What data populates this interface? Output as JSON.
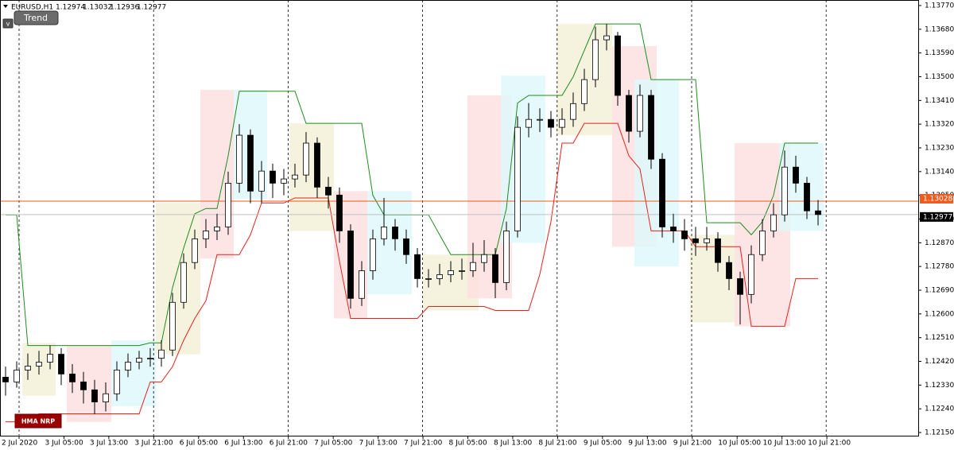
{
  "chart_data": {
    "type": "candlestick",
    "title": "EURUSD,H1",
    "last_bar": [
      1.12974,
      1.13032,
      1.12936,
      1.12977
    ],
    "ylim": [
      1.12138,
      1.13791
    ],
    "yticks": [
      {
        "value": 1.1377,
        "label": "1.13770"
      },
      {
        "value": 1.1368,
        "label": "1.13680"
      },
      {
        "value": 1.1359,
        "label": "1.13590"
      },
      {
        "value": 1.135,
        "label": "1.13500"
      },
      {
        "value": 1.1341,
        "label": "1.13410"
      },
      {
        "value": 1.1332,
        "label": "1.13320"
      },
      {
        "value": 1.1323,
        "label": "1.13230"
      },
      {
        "value": 1.1314,
        "label": "1.13140"
      },
      {
        "value": 1.1305,
        "label": "1.13050"
      },
      {
        "value": 1.1296,
        "label": "1.12960"
      },
      {
        "value": 1.1287,
        "label": "1.12870"
      },
      {
        "value": 1.1278,
        "label": "1.12780"
      },
      {
        "value": 1.1269,
        "label": "1.12690"
      },
      {
        "value": 1.126,
        "label": "1.12600"
      },
      {
        "value": 1.1251,
        "label": "1.12510"
      },
      {
        "value": 1.1242,
        "label": "1.12420"
      },
      {
        "value": 1.1233,
        "label": "1.12330"
      },
      {
        "value": 1.1224,
        "label": "1.12240"
      },
      {
        "value": 1.1215,
        "label": "1.12150"
      }
    ],
    "xtick_labels": [
      "2 Jul 2020",
      "3 Jul 05:00",
      "3 Jul 13:00",
      "3 Jul 21:00",
      "6 Jul 05:00",
      "6 Jul 13:00",
      "6 Jul 21:00",
      "7 Jul 05:00",
      "7 Jul 13:00",
      "7 Jul 21:00",
      "8 Jul 05:00",
      "8 Jul 13:00",
      "8 Jul 21:00",
      "9 Jul 05:00",
      "9 Jul 13:00",
      "9 Jul 21:00",
      "10 Jul 05:00",
      "10 Jul 13:00",
      "10 Jul 21:00"
    ],
    "open": [
      1.1236,
      1.12342,
      1.12387,
      1.12402,
      1.12417,
      1.12447,
      1.12372,
      1.12342,
      1.12312,
      1.12266,
      1.12297,
      1.12387,
      1.12417,
      1.12432,
      1.12432,
      1.12463,
      1.12644,
      1.12795,
      1.12885,
      1.12915,
      1.1293,
      1.13096,
      1.13278,
      1.13066,
      1.13142,
      1.13096,
      1.13112,
      1.13127,
      1.13248,
      1.13081,
      1.13051,
      1.12915,
      1.12659,
      1.12764,
      1.12885,
      1.1293,
      1.12885,
      1.12825,
      1.12734,
      1.12734,
      1.12749,
      1.12764,
      1.12764,
      1.12795,
      1.12825,
      1.12719,
      1.12915,
      1.13308,
      1.13338,
      1.13338,
      1.13308,
      1.13338,
      1.13398,
      1.13489,
      1.1364,
      1.13655,
      1.13429,
      1.13293,
      1.13429,
      1.13187,
      1.1293,
      1.12915,
      1.12885,
      1.1287,
      1.12885,
      1.12795,
      1.12734,
      1.12674,
      1.12825,
      1.12915,
      1.12976,
      1.13157,
      1.13096,
      1.12991
    ],
    "high": [
      1.124,
      1.1242,
      1.1245,
      1.1246,
      1.1248,
      1.1247,
      1.1241,
      1.1238,
      1.1235,
      1.1234,
      1.1242,
      1.1245,
      1.1246,
      1.1247,
      1.125,
      1.1268,
      1.1283,
      1.1292,
      1.1296,
      1.1298,
      1.1314,
      1.1332,
      1.133,
      1.1318,
      1.1317,
      1.1315,
      1.1317,
      1.1329,
      1.1327,
      1.1312,
      1.1308,
      1.1294,
      1.128,
      1.1292,
      1.1304,
      1.1296,
      1.1292,
      1.1285,
      1.1277,
      1.1279,
      1.128,
      1.1281,
      1.1287,
      1.1288,
      1.1285,
      1.1295,
      1.1335,
      1.134,
      1.1338,
      1.1337,
      1.1338,
      1.1344,
      1.1353,
      1.1369,
      1.137,
      1.1367,
      1.1345,
      1.1347,
      1.1345,
      1.1321,
      1.1298,
      1.1296,
      1.1293,
      1.1293,
      1.1291,
      1.1282,
      1.1276,
      1.1286,
      1.1296,
      1.1302,
      1.1322,
      1.132,
      1.1312,
      1.13032
    ],
    "low": [
      1.1229,
      1.1232,
      1.1235,
      1.1237,
      1.1239,
      1.1233,
      1.123,
      1.1226,
      1.1222,
      1.1223,
      1.1227,
      1.1236,
      1.1239,
      1.124,
      1.124,
      1.1244,
      1.1262,
      1.1277,
      1.1285,
      1.1288,
      1.129,
      1.1306,
      1.1302,
      1.1302,
      1.1304,
      1.1305,
      1.1308,
      1.131,
      1.1304,
      1.13,
      1.1287,
      1.1262,
      1.1263,
      1.1273,
      1.1286,
      1.1284,
      1.1279,
      1.127,
      1.127,
      1.1271,
      1.1272,
      1.1273,
      1.1274,
      1.1276,
      1.1266,
      1.1269,
      1.1289,
      1.1327,
      1.1329,
      1.1327,
      1.1328,
      1.1331,
      1.1337,
      1.1346,
      1.136,
      1.1339,
      1.1325,
      1.1327,
      1.1315,
      1.1289,
      1.1287,
      1.1284,
      1.1282,
      1.1284,
      1.1276,
      1.1269,
      1.1256,
      1.1264,
      1.128,
      1.1289,
      1.1295,
      1.1306,
      1.1296,
      1.12936
    ],
    "close": [
      1.12342,
      1.12387,
      1.12402,
      1.12417,
      1.12447,
      1.12372,
      1.12342,
      1.12312,
      1.12266,
      1.12297,
      1.12387,
      1.12417,
      1.12432,
      1.12432,
      1.12463,
      1.12644,
      1.12795,
      1.12885,
      1.12915,
      1.1293,
      1.13096,
      1.13278,
      1.13066,
      1.13142,
      1.13096,
      1.13112,
      1.13127,
      1.13248,
      1.13081,
      1.13051,
      1.12915,
      1.12659,
      1.12764,
      1.12885,
      1.1293,
      1.12885,
      1.12825,
      1.12734,
      1.12734,
      1.12749,
      1.12764,
      1.12764,
      1.12795,
      1.12825,
      1.12719,
      1.12915,
      1.13308,
      1.13338,
      1.13338,
      1.13308,
      1.13338,
      1.13398,
      1.13489,
      1.1364,
      1.13655,
      1.13429,
      1.13293,
      1.13429,
      1.13187,
      1.1293,
      1.12915,
      1.12885,
      1.1287,
      1.12885,
      1.12795,
      1.12734,
      1.12674,
      1.12825,
      1.12915,
      1.12976,
      1.13157,
      1.13096,
      1.12991,
      1.12977
    ],
    "bands": [
      {
        "color": "#1e8c1e",
        "values": [
          1.12976,
          1.12976,
          1.1248,
          1.1248,
          1.1248,
          1.1248,
          1.1248,
          1.1248,
          1.1248,
          1.1248,
          1.1248,
          1.1248,
          1.1248,
          1.1249,
          1.1249,
          1.127,
          1.1285,
          1.1298,
          1.13,
          1.13,
          1.132,
          1.13445,
          1.13445,
          1.13445,
          1.13445,
          1.13445,
          1.13445,
          1.13323,
          1.13323,
          1.13323,
          1.13323,
          1.13323,
          1.13323,
          1.1305,
          1.12976,
          1.12976,
          1.12976,
          1.12976,
          1.12976,
          1.129,
          1.12825,
          1.12825,
          1.12825,
          1.12825,
          1.12825,
          1.13,
          1.134,
          1.13429,
          1.13429,
          1.13429,
          1.13429,
          1.135,
          1.136,
          1.137,
          1.137,
          1.137,
          1.137,
          1.137,
          1.13489,
          1.13489,
          1.13489,
          1.13489,
          1.13489,
          1.12946,
          1.12946,
          1.12946,
          1.12946,
          1.129,
          1.1295,
          1.1305,
          1.13248,
          1.13248,
          1.13248,
          1.13248
        ]
      },
      {
        "color": "#e8201c",
        "values": [
          1.12191,
          1.12191,
          1.12191,
          1.12221,
          1.12221,
          1.12221,
          1.12221,
          1.12221,
          1.12221,
          1.12221,
          1.12221,
          1.12221,
          1.12221,
          1.12342,
          1.12342,
          1.124,
          1.125,
          1.12583,
          1.1265,
          1.12825,
          1.12825,
          1.12825,
          1.129,
          1.13021,
          1.13021,
          1.13021,
          1.1304,
          1.1304,
          1.1304,
          1.1304,
          1.128,
          1.12583,
          1.12583,
          1.12583,
          1.12583,
          1.12583,
          1.12583,
          1.12583,
          1.12628,
          1.12628,
          1.12628,
          1.12628,
          1.12628,
          1.12628,
          1.12613,
          1.12613,
          1.12613,
          1.12613,
          1.1275,
          1.1295,
          1.13248,
          1.13248,
          1.13323,
          1.13323,
          1.13323,
          1.13323,
          1.132,
          1.1315,
          1.12915,
          1.12915,
          1.12915,
          1.12915,
          1.12855,
          1.12855,
          1.12855,
          1.12855,
          1.12855,
          1.12553,
          1.12553,
          1.12553,
          1.12553,
          1.12734,
          1.12734,
          1.12734
        ]
      }
    ],
    "zones": [
      {
        "start": 2,
        "end": 4,
        "top": 1.1249,
        "bottom": 1.1229,
        "color": "#f3f0d8"
      },
      {
        "start": 6,
        "end": 9,
        "top": 1.1248,
        "bottom": 1.1219,
        "color": "#fde0e0"
      },
      {
        "start": 10,
        "end": 13,
        "top": 1.125,
        "bottom": 1.1225,
        "color": "#dff8fc"
      },
      {
        "start": 14,
        "end": 17,
        "top": 1.13021,
        "bottom": 1.12447,
        "color": "#f3f0d8"
      },
      {
        "start": 18,
        "end": 20,
        "top": 1.1345,
        "bottom": 1.1281,
        "color": "#fde0e0"
      },
      {
        "start": 21,
        "end": 23,
        "top": 1.1345,
        "bottom": 1.13036,
        "color": "#dff8fc"
      },
      {
        "start": 26,
        "end": 29,
        "top": 1.13323,
        "bottom": 1.12915,
        "color": "#f3f0d8"
      },
      {
        "start": 30,
        "end": 32,
        "top": 1.13066,
        "bottom": 1.12583,
        "color": "#fde0e0"
      },
      {
        "start": 33,
        "end": 36,
        "top": 1.13066,
        "bottom": 1.12674,
        "color": "#dff8fc"
      },
      {
        "start": 38,
        "end": 42,
        "top": 1.12825,
        "bottom": 1.12613,
        "color": "#f3f0d8"
      },
      {
        "start": 42,
        "end": 45,
        "top": 1.13429,
        "bottom": 1.12659,
        "color": "#fde0e0"
      },
      {
        "start": 45,
        "end": 48,
        "top": 1.13504,
        "bottom": 1.1287,
        "color": "#dff8fc"
      },
      {
        "start": 50,
        "end": 54,
        "top": 1.137,
        "bottom": 1.13278,
        "color": "#f3f0d8"
      },
      {
        "start": 55,
        "end": 58,
        "top": 1.13616,
        "bottom": 1.12855,
        "color": "#fde0e0"
      },
      {
        "start": 57,
        "end": 60,
        "top": 1.13489,
        "bottom": 1.1278,
        "color": "#dff8fc"
      },
      {
        "start": 62,
        "end": 65,
        "top": 1.129,
        "bottom": 1.12568,
        "color": "#f3f0d8"
      },
      {
        "start": 66,
        "end": 70,
        "top": 1.13248,
        "bottom": 1.12553,
        "color": "#fde0e0"
      },
      {
        "start": 70,
        "end": 73,
        "top": 1.13248,
        "bottom": 1.12915,
        "color": "#dff8fc"
      }
    ],
    "price_lines": [
      {
        "value": 1.13028,
        "color": "#f05a1e"
      },
      {
        "value": 1.12977,
        "color": "#c0c0c0"
      }
    ]
  },
  "ui": {
    "collapse": "v",
    "trend_button": "Trend",
    "indicator_label": "HMA NRP"
  }
}
